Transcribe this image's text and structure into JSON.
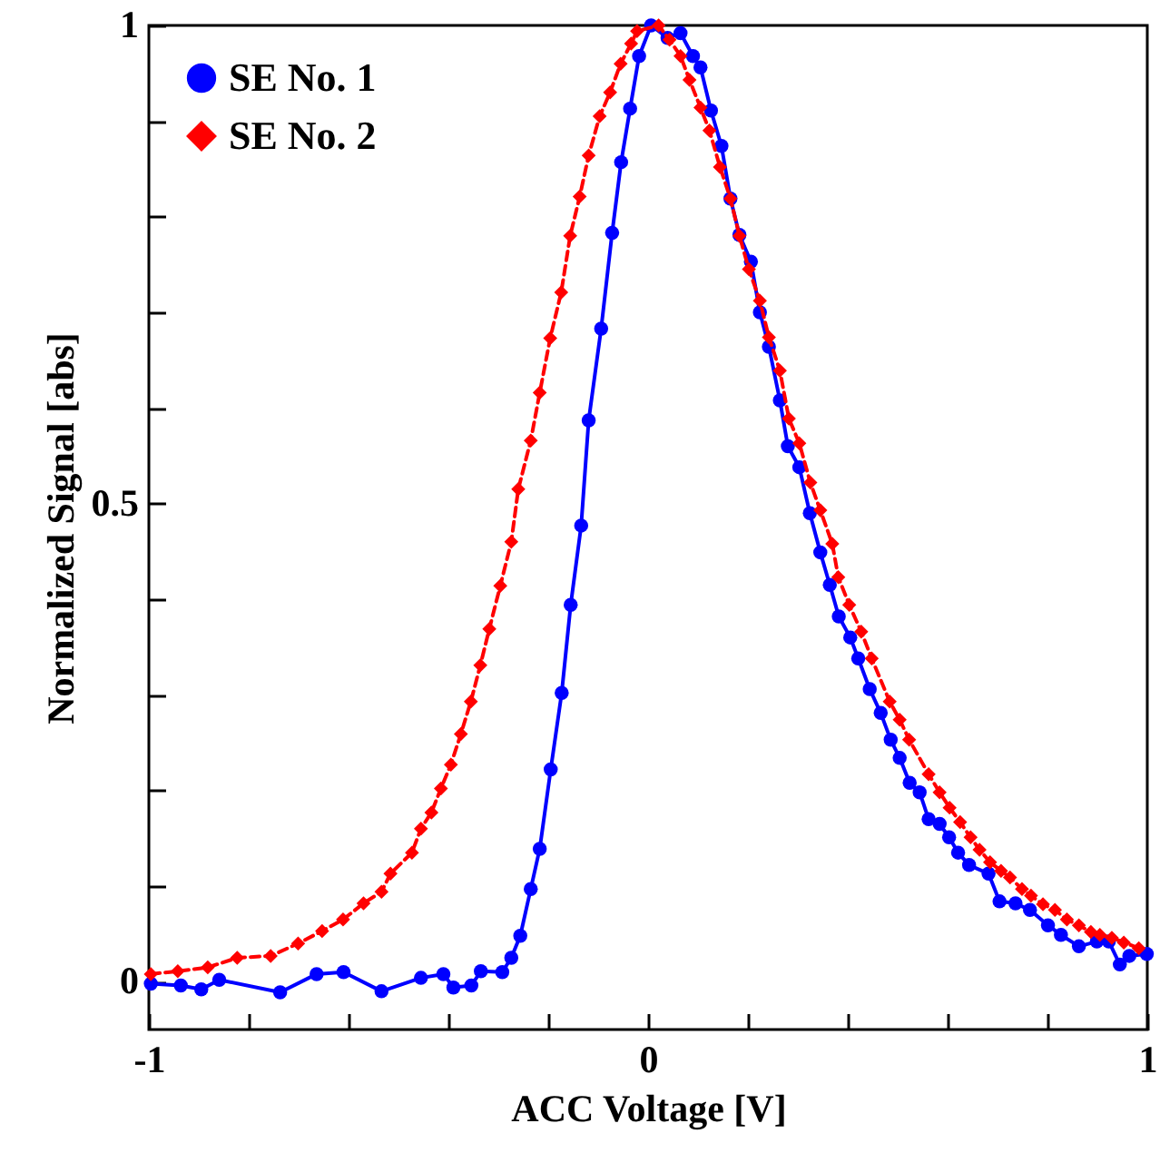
{
  "chart_data": {
    "type": "line",
    "xlabel": "ACC Voltage [V]",
    "ylabel": "Normalized Signal [abs]",
    "xlim": [
      -1,
      1
    ],
    "ylim": [
      -0.05,
      1
    ],
    "xticks": [
      -1,
      {
        "value": -0.8,
        "label": null
      },
      {
        "value": -0.6,
        "label": null
      },
      {
        "value": -0.4,
        "label": null
      },
      {
        "value": -0.2,
        "label": null
      },
      0,
      {
        "value": 0.2,
        "label": null
      },
      {
        "value": 0.4,
        "label": null
      },
      {
        "value": 0.6,
        "label": null
      },
      {
        "value": 0.8,
        "label": null
      },
      1
    ],
    "yticks": [
      0,
      {
        "value": 0.1,
        "label": null
      },
      {
        "value": 0.2,
        "label": null
      },
      {
        "value": 0.3,
        "label": null
      },
      {
        "value": 0.4,
        "label": null
      },
      0.5,
      {
        "value": 0.6,
        "label": null
      },
      {
        "value": 0.7,
        "label": null
      },
      {
        "value": 0.8,
        "label": null
      },
      {
        "value": 0.9,
        "label": null
      },
      1
    ],
    "grid": false,
    "legend": "top left",
    "series": [
      {
        "name": "SE No. 1",
        "color": "#0000ff",
        "marker": "circle",
        "line_style": "solid",
        "x": [
          -0.996,
          -0.936,
          -0.895,
          -0.859,
          -0.737,
          -0.664,
          -0.61,
          -0.534,
          -0.455,
          -0.41,
          -0.39,
          -0.354,
          -0.335,
          -0.292,
          -0.274,
          -0.256,
          -0.235,
          -0.217,
          -0.195,
          -0.173,
          -0.155,
          -0.134,
          -0.119,
          -0.094,
          -0.072,
          -0.054,
          -0.036,
          -0.018,
          0.006,
          0.039,
          0.065,
          0.09,
          0.105,
          0.126,
          0.147,
          0.165,
          0.183,
          0.206,
          0.224,
          0.242,
          0.264,
          0.28,
          0.303,
          0.324,
          0.345,
          0.364,
          0.382,
          0.405,
          0.421,
          0.444,
          0.466,
          0.486,
          0.504,
          0.524,
          0.544,
          0.562,
          0.584,
          0.603,
          0.621,
          0.643,
          0.682,
          0.704,
          0.736,
          0.765,
          0.801,
          0.827,
          0.863,
          0.899,
          0.923,
          0.945,
          0.964,
          0.999
        ],
        "values": [
          -0.002,
          -0.004,
          -0.008,
          0.002,
          -0.011,
          0.008,
          0.01,
          -0.01,
          0.004,
          0.008,
          -0.006,
          -0.004,
          0.011,
          0.01,
          0.025,
          0.048,
          0.097,
          0.139,
          0.222,
          0.302,
          0.394,
          0.477,
          0.587,
          0.683,
          0.783,
          0.857,
          0.913,
          0.968,
          1.0,
          0.987,
          0.992,
          0.968,
          0.956,
          0.911,
          0.874,
          0.819,
          0.781,
          0.753,
          0.7,
          0.664,
          0.608,
          0.56,
          0.538,
          0.49,
          0.449,
          0.415,
          0.382,
          0.36,
          0.338,
          0.306,
          0.281,
          0.253,
          0.234,
          0.208,
          0.198,
          0.17,
          0.165,
          0.151,
          0.135,
          0.122,
          0.113,
          0.084,
          0.082,
          0.075,
          0.059,
          0.049,
          0.037,
          0.042,
          0.042,
          0.018,
          0.027,
          0.029
        ]
      },
      {
        "name": "SE No. 2",
        "color": "#ff0000",
        "marker": "diamond",
        "line_style": "dashed",
        "x": [
          -0.996,
          -0.942,
          -0.882,
          -0.823,
          -0.756,
          -0.701,
          -0.653,
          -0.611,
          -0.57,
          -0.534,
          -0.516,
          -0.473,
          -0.455,
          -0.434,
          -0.415,
          -0.395,
          -0.375,
          -0.355,
          -0.336,
          -0.318,
          -0.296,
          -0.274,
          -0.26,
          -0.235,
          -0.217,
          -0.196,
          -0.174,
          -0.156,
          -0.137,
          -0.119,
          -0.097,
          -0.076,
          -0.055,
          -0.034,
          -0.022,
          0.021,
          0.043,
          0.065,
          0.083,
          0.105,
          0.123,
          0.144,
          0.165,
          0.183,
          0.202,
          0.224,
          0.242,
          0.264,
          0.282,
          0.303,
          0.325,
          0.345,
          0.369,
          0.381,
          0.403,
          0.427,
          0.448,
          0.484,
          0.504,
          0.523,
          0.562,
          0.584,
          0.604,
          0.625,
          0.646,
          0.664,
          0.685,
          0.707,
          0.725,
          0.749,
          0.767,
          0.791,
          0.815,
          0.839,
          0.863,
          0.887,
          0.905,
          0.929,
          0.953,
          0.983
        ],
        "values": [
          0.008,
          0.011,
          0.015,
          0.025,
          0.027,
          0.04,
          0.053,
          0.065,
          0.082,
          0.094,
          0.113,
          0.135,
          0.16,
          0.177,
          0.202,
          0.227,
          0.259,
          0.293,
          0.331,
          0.369,
          0.414,
          0.46,
          0.515,
          0.566,
          0.616,
          0.673,
          0.721,
          0.78,
          0.821,
          0.864,
          0.905,
          0.93,
          0.96,
          0.981,
          0.994,
          1.0,
          0.985,
          0.968,
          0.943,
          0.914,
          0.89,
          0.852,
          0.819,
          0.78,
          0.745,
          0.712,
          0.674,
          0.639,
          0.589,
          0.563,
          0.522,
          0.493,
          0.458,
          0.423,
          0.394,
          0.366,
          0.338,
          0.293,
          0.274,
          0.253,
          0.217,
          0.198,
          0.182,
          0.167,
          0.151,
          0.138,
          0.125,
          0.116,
          0.109,
          0.097,
          0.09,
          0.081,
          0.075,
          0.065,
          0.059,
          0.052,
          0.049,
          0.046,
          0.041,
          0.035
        ]
      }
    ]
  }
}
